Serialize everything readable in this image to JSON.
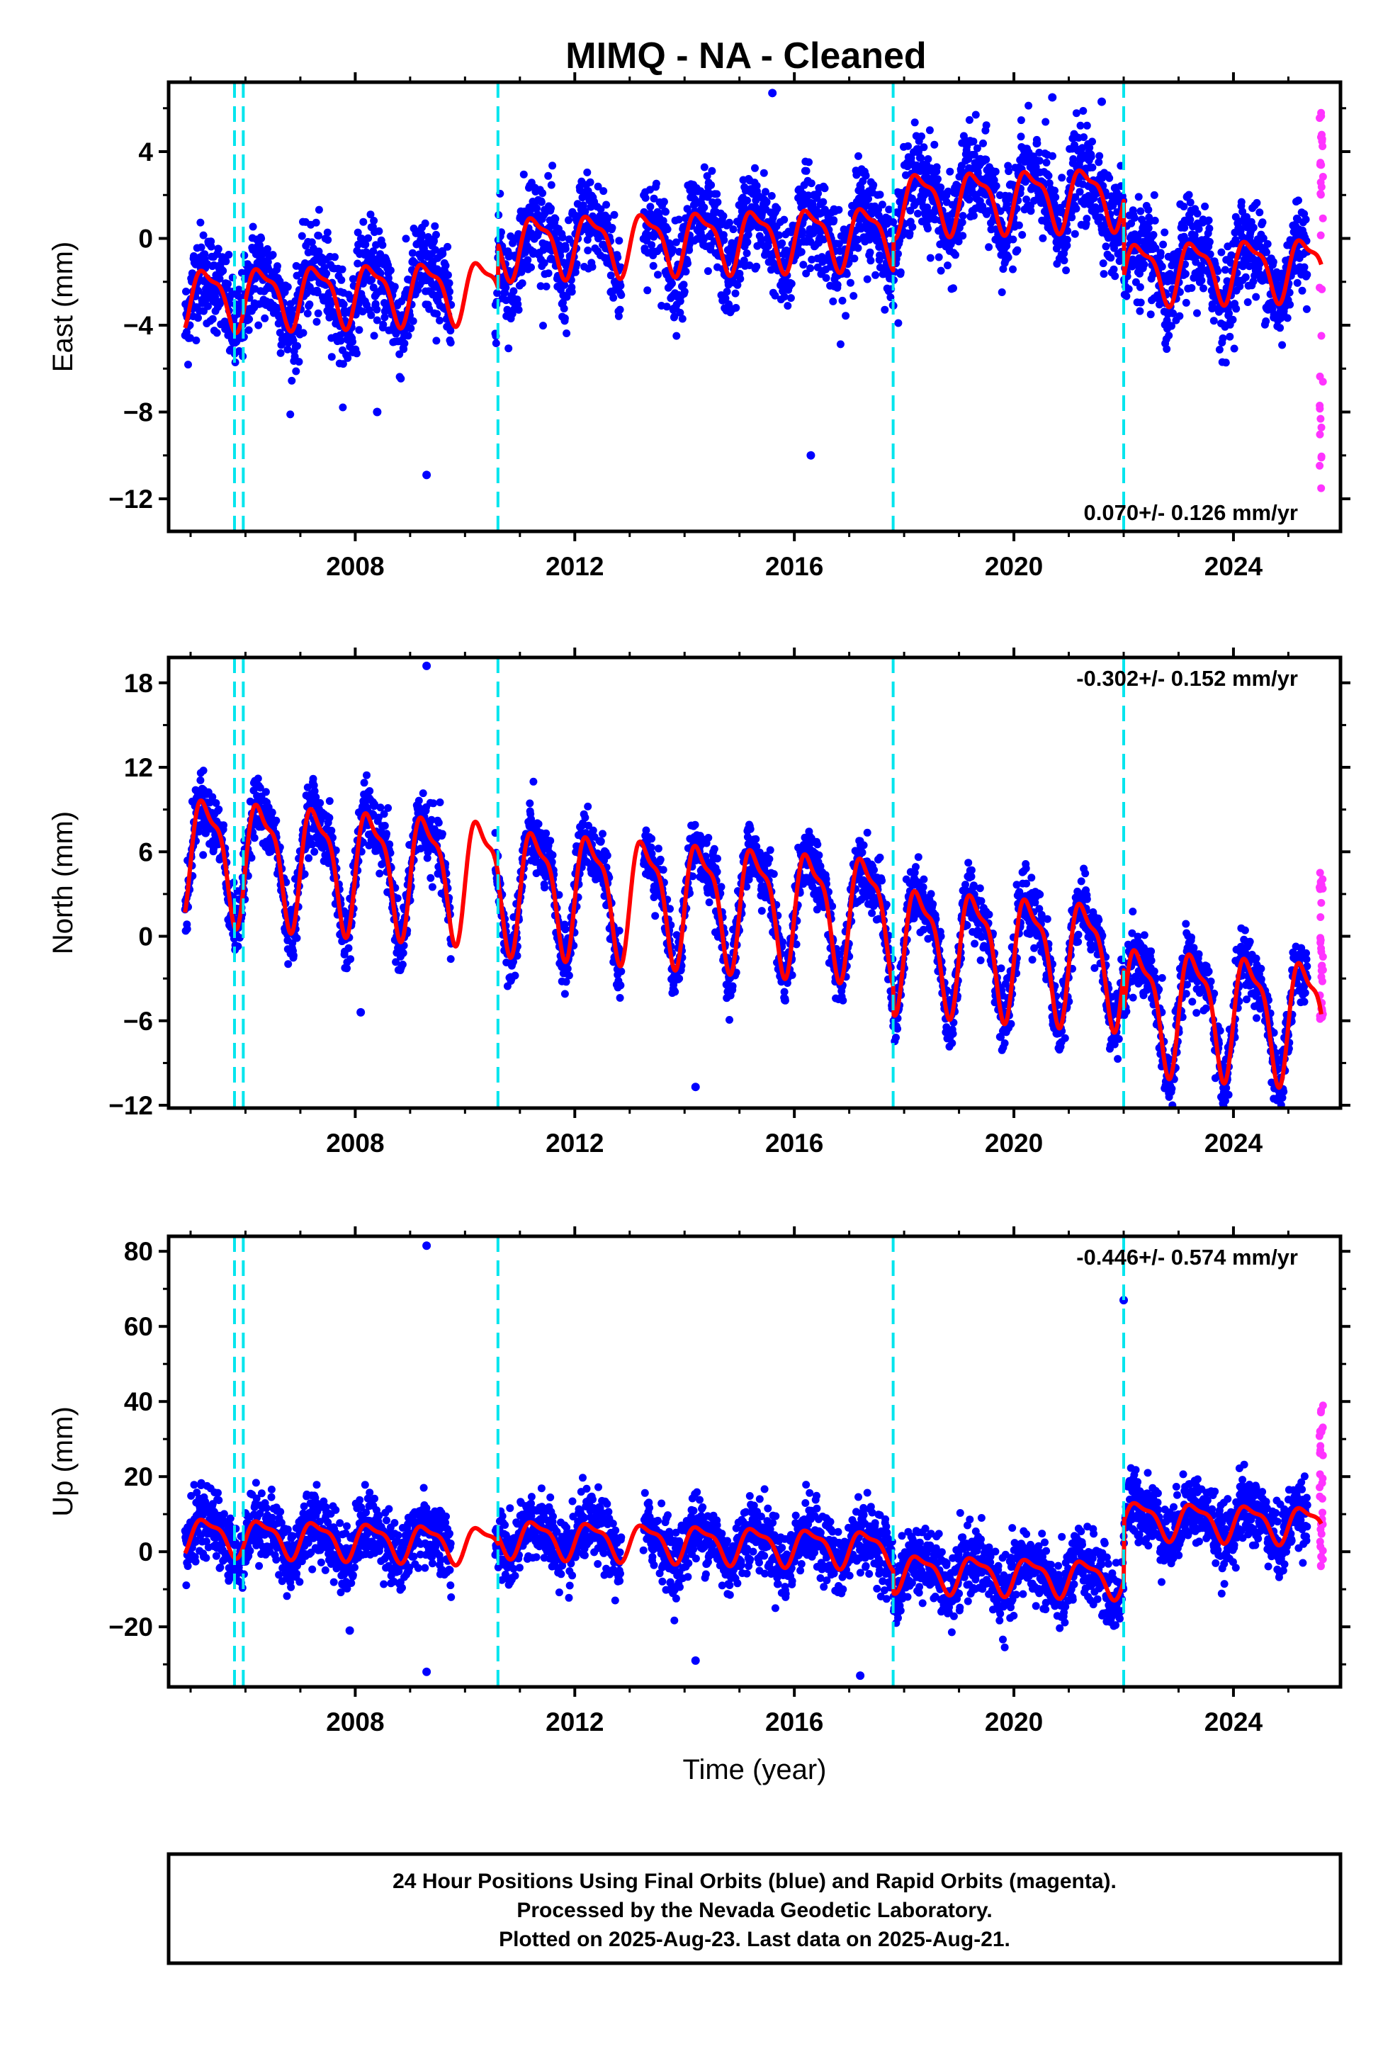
{
  "title": "MIMQ  - NA - Cleaned",
  "colors": {
    "final_orbits": "#0000ff",
    "rapid_orbits": "#ff33ff",
    "model_fit": "#ff0000",
    "breaks": "#00e5ee",
    "axis": "#000000"
  },
  "chart_data": [
    {
      "type": "scatter",
      "name": "east",
      "ylabel": "East (mm)",
      "ylim": [
        -13.5,
        7.2
      ],
      "yticks": [
        "4",
        "0",
        "−4",
        "−8",
        "−12"
      ],
      "ytick_values": [
        4,
        0,
        -4,
        -8,
        -12
      ],
      "xlim": [
        2004.6,
        2025.95
      ],
      "xticks": [
        "2008",
        "2012",
        "2016",
        "2020",
        "2024"
      ],
      "xtick_values": [
        2008,
        2012,
        2016,
        2020,
        2024
      ],
      "rate": "0.070+/- 0.126 mm/yr",
      "rate_position": "bottom-right",
      "breaks": [
        2005.8,
        2005.96,
        2010.6,
        2017.8,
        2022.0
      ],
      "series": [
        {
          "role": "final_orbits",
          "x_start": 2004.9,
          "x_end": 2025.35,
          "offsets": [
            [
              2004.9,
              -2
            ],
            [
              2010.6,
              0
            ],
            [
              2017.8,
              1.5
            ],
            [
              2022.0,
              -2
            ]
          ],
          "trend": 0.07,
          "seasonal_amplitude": 1.3,
          "scatter_sd": 1.1,
          "outliers": [
            [
              2008.4,
              -8.0
            ],
            [
              2009.3,
              -10.9
            ],
            [
              2016.3,
              -10.0
            ],
            [
              2015.6,
              6.7
            ],
            [
              2020.7,
              6.5
            ],
            [
              2021.6,
              6.3
            ]
          ]
        },
        {
          "role": "rapid_orbits",
          "x": 2025.6,
          "y_range": [
            -13,
            6.2
          ]
        },
        {
          "role": "model_fit",
          "x_start": 2004.9,
          "x_end": 2025.6
        }
      ]
    },
    {
      "type": "scatter",
      "name": "north",
      "ylabel": "North (mm)",
      "ylim": [
        -12.2,
        19.8
      ],
      "yticks": [
        "18",
        "12",
        "6",
        "0",
        "−6",
        "−12"
      ],
      "ytick_values": [
        18,
        12,
        6,
        0,
        -6,
        -12
      ],
      "xlim": [
        2004.6,
        2025.95
      ],
      "xticks": [
        "2008",
        "2012",
        "2016",
        "2020",
        "2024"
      ],
      "xtick_values": [
        2008,
        2012,
        2016,
        2020,
        2024
      ],
      "rate": "-0.302+/- 0.152 mm/yr",
      "rate_position": "top-right",
      "breaks": [
        2005.8,
        2005.96,
        2010.6,
        2017.8,
        2022.0
      ],
      "series": [
        {
          "role": "final_orbits",
          "x_start": 2004.9,
          "x_end": 2025.35,
          "offsets": [
            [
              2004.9,
              3
            ],
            [
              2010.6,
              2.5
            ],
            [
              2017.8,
              0.5
            ],
            [
              2022.0,
              -2.5
            ]
          ],
          "trend": -0.302,
          "seasonal_amplitude": 4.0,
          "scatter_sd": 1.1,
          "outliers": [
            [
              2009.3,
              19.2
            ],
            [
              2014.2,
              -10.7
            ],
            [
              2023.8,
              -11.5
            ],
            [
              2008.1,
              -5.4
            ]
          ]
        },
        {
          "role": "rapid_orbits",
          "x": 2025.6,
          "y_range": [
            -6,
            5.2
          ]
        },
        {
          "role": "model_fit",
          "x_start": 2004.9,
          "x_end": 2025.6
        }
      ]
    },
    {
      "type": "scatter",
      "name": "up",
      "ylabel": "Up (mm)",
      "ylim": [
        -36,
        84
      ],
      "yticks": [
        "80",
        "60",
        "40",
        "20",
        "0",
        "−20"
      ],
      "ytick_values": [
        80,
        60,
        40,
        20,
        0,
        -20
      ],
      "xlim": [
        2004.6,
        2025.95
      ],
      "xticks": [
        "2008",
        "2012",
        "2016",
        "2020",
        "2024"
      ],
      "xtick_values": [
        2008,
        2012,
        2016,
        2020,
        2024
      ],
      "xlabel": "Time (year)",
      "rate": "-0.446+/- 0.574 mm/yr",
      "rate_position": "top-right",
      "breaks": [
        2005.8,
        2005.96,
        2010.6,
        2017.8,
        2022.0
      ],
      "series": [
        {
          "role": "final_orbits",
          "x_start": 2004.9,
          "x_end": 2025.35,
          "offsets": [
            [
              2004.9,
              0
            ],
            [
              2010.6,
              2
            ],
            [
              2017.8,
              -4
            ],
            [
              2022.0,
              12
            ]
          ],
          "trend": -0.446,
          "seasonal_amplitude": 4.5,
          "scatter_sd": 4.5,
          "outliers": [
            [
              2009.3,
              81.5
            ],
            [
              2022.0,
              67.0
            ],
            [
              2009.3,
              -32.0
            ],
            [
              2014.2,
              -29.0
            ],
            [
              2017.2,
              -33.0
            ],
            [
              2007.9,
              -21.0
            ]
          ]
        },
        {
          "role": "rapid_orbits",
          "x": 2025.6,
          "y_range": [
            -9,
            39
          ]
        },
        {
          "role": "model_fit",
          "x_start": 2004.9,
          "x_end": 2025.6
        }
      ]
    }
  ],
  "footer": {
    "line1": "24 Hour Positions Using Final Orbits (blue) and Rapid Orbits (magenta).",
    "line2": "Processed by the Nevada Geodetic Laboratory.",
    "line3": "Plotted on 2025-Aug-23. Last data on 2025-Aug-21."
  }
}
